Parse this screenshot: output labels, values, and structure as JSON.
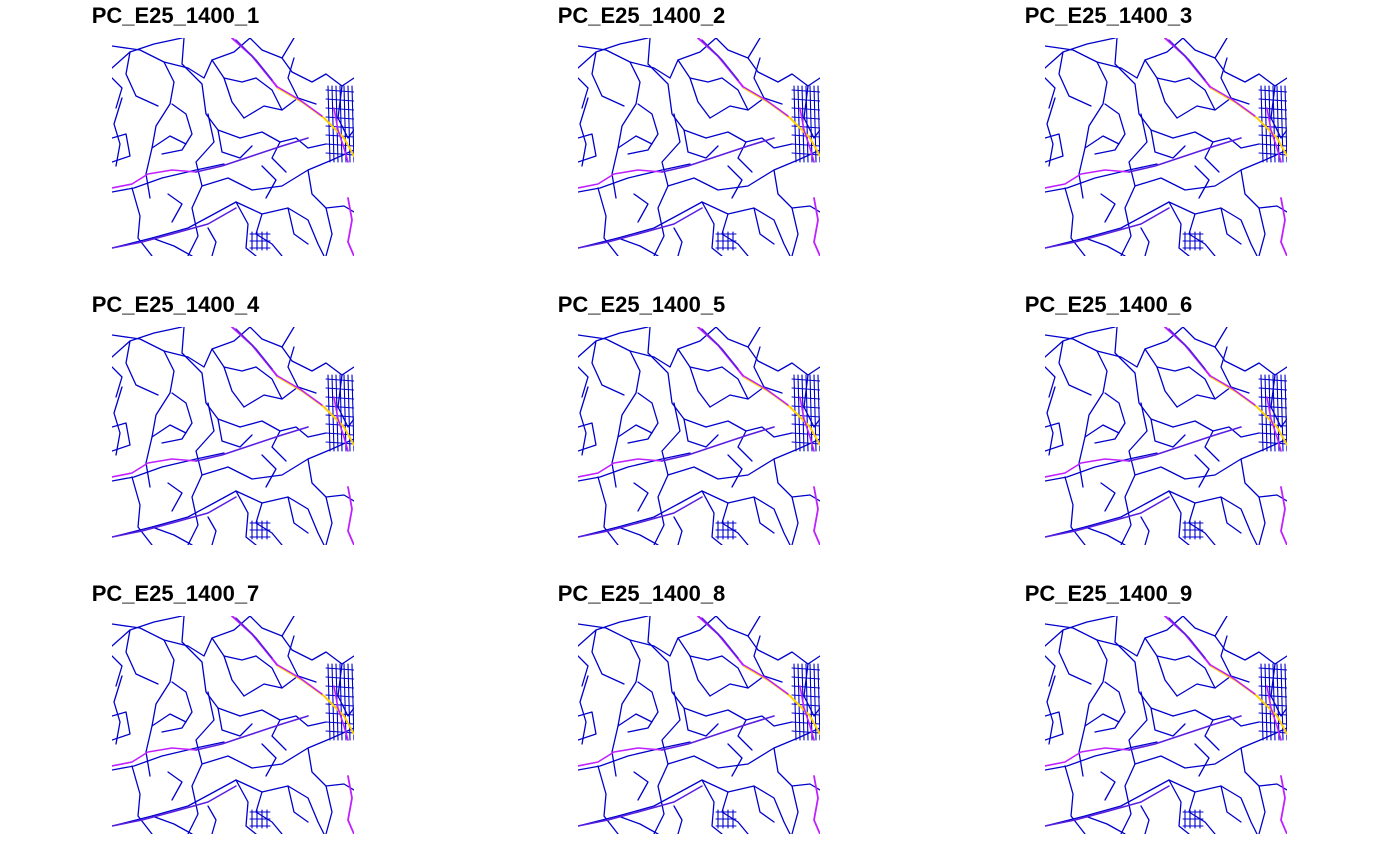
{
  "figure": {
    "layout": {
      "rows": 3,
      "cols": 3
    },
    "panels": [
      {
        "title": "PC_E25_1400_1"
      },
      {
        "title": "PC_E25_1400_2"
      },
      {
        "title": "PC_E25_1400_3"
      },
      {
        "title": "PC_E25_1400_4"
      },
      {
        "title": "PC_E25_1400_5"
      },
      {
        "title": "PC_E25_1400_6"
      },
      {
        "title": "PC_E25_1400_7"
      },
      {
        "title": "PC_E25_1400_8"
      },
      {
        "title": "PC_E25_1400_9"
      }
    ]
  },
  "palette": {
    "low": "#0000cc",
    "mid": "#5a1ee0",
    "high": "#c020ff",
    "peak": "#ffd000"
  }
}
